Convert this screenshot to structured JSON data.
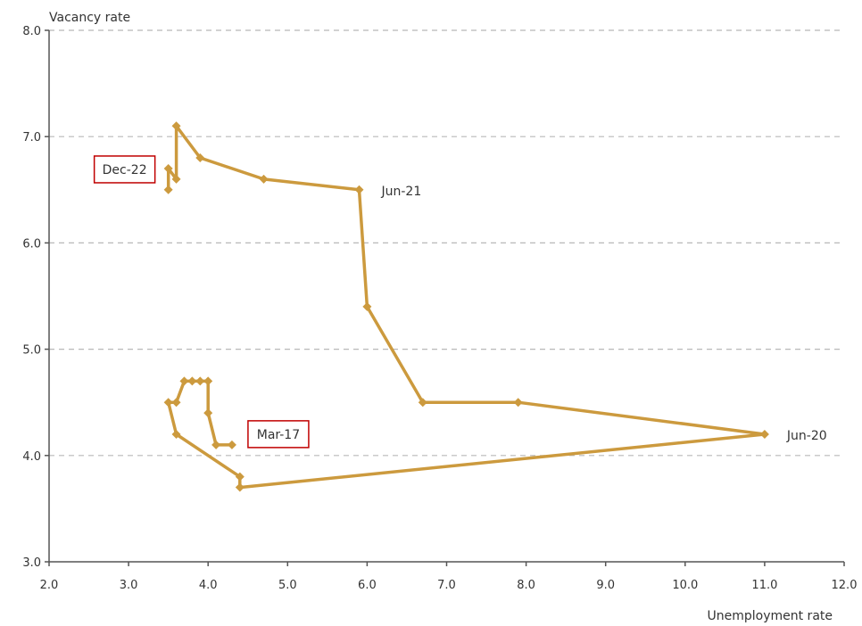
{
  "chart_data": {
    "type": "line",
    "ylabel": "Vacancy rate",
    "xlabel": "Unemployment rate",
    "xlim": [
      2.0,
      12.0
    ],
    "ylim": [
      3.0,
      8.0
    ],
    "xticks": [
      "2.0",
      "3.0",
      "4.0",
      "5.0",
      "6.0",
      "7.0",
      "8.0",
      "9.0",
      "10.0",
      "11.0",
      "12.0"
    ],
    "yticks": [
      "3.0",
      "4.0",
      "5.0",
      "6.0",
      "7.0",
      "8.0"
    ],
    "grid": "horizontal dashed",
    "line_color": "#CC9A3E",
    "box_border_color": "#C00000",
    "series": [
      {
        "points": [
          {
            "x": 4.3,
            "y": 4.1
          },
          {
            "x": 4.1,
            "y": 4.1
          },
          {
            "x": 4.0,
            "y": 4.4
          },
          {
            "x": 4.0,
            "y": 4.7
          },
          {
            "x": 3.9,
            "y": 4.7
          },
          {
            "x": 3.8,
            "y": 4.7
          },
          {
            "x": 3.7,
            "y": 4.7
          },
          {
            "x": 3.6,
            "y": 4.5
          },
          {
            "x": 3.5,
            "y": 4.5
          },
          {
            "x": 3.6,
            "y": 4.2
          },
          {
            "x": 4.4,
            "y": 3.8
          },
          {
            "x": 4.4,
            "y": 3.7
          },
          {
            "x": 11.0,
            "y": 4.2
          },
          {
            "x": 7.9,
            "y": 4.5
          },
          {
            "x": 6.7,
            "y": 4.5
          },
          {
            "x": 6.0,
            "y": 5.4
          },
          {
            "x": 5.9,
            "y": 6.5
          },
          {
            "x": 4.7,
            "y": 6.6
          },
          {
            "x": 3.9,
            "y": 6.8
          },
          {
            "x": 3.6,
            "y": 7.1
          },
          {
            "x": 3.6,
            "y": 6.6
          },
          {
            "x": 3.5,
            "y": 6.7
          },
          {
            "x": 3.5,
            "y": 6.5
          }
        ]
      }
    ],
    "annotations": [
      {
        "text": "Jun-21",
        "x": 5.9,
        "y": 6.5,
        "boxed": false
      },
      {
        "text": "Jun-20",
        "x": 11.0,
        "y": 4.2,
        "boxed": false
      },
      {
        "text": "Dec-22",
        "x": 3.5,
        "y": 6.7,
        "boxed": true
      },
      {
        "text": "Mar-17",
        "x": 4.3,
        "y": 4.1,
        "boxed": true
      }
    ]
  }
}
